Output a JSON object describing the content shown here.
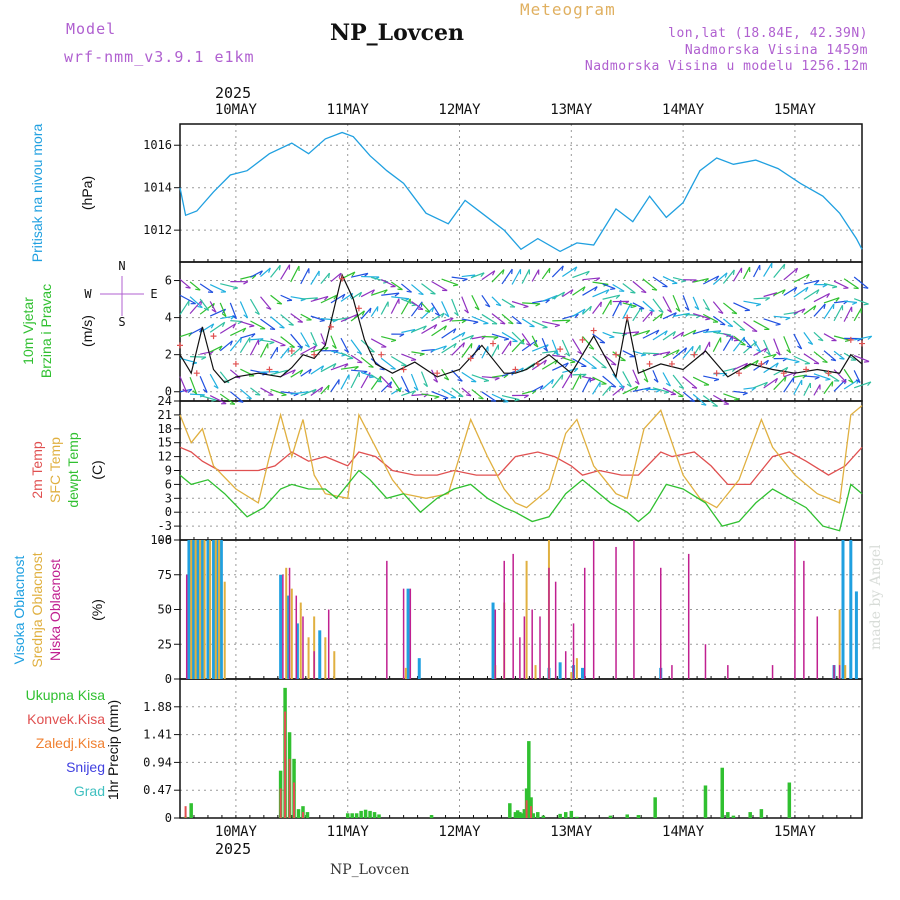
{
  "header": {
    "model_label": "Model",
    "model_value": "wrf-nmm_v3.9.1 e1km",
    "station_title": "NP_Lovcen",
    "meteogram_label": "Meteogram",
    "info_lines": [
      "lon,lat (18.84E, 42.39N)",
      "Nadmorska Visina 1459m",
      "Nadmorska Visina u modelu 1256.12m"
    ],
    "year": "2025",
    "footer_station": "NP_Lovcen",
    "watermark": "made by Angel"
  },
  "colors": {
    "pressure": "#20a0e0",
    "wind_label": "#30c030",
    "temp2m": "#e05050",
    "sfc": "#e0b040",
    "dewpt": "#30c030",
    "cloud_high": "#20a0e0",
    "cloud_mid": "#e0b040",
    "cloud_low": "#c02090",
    "precip_total": "#30c030",
    "precip_conv": "#e05050",
    "precip_strat": "#f08030",
    "precip_snow": "#4040e0",
    "precip_hail": "#40c0c0",
    "title_purple": "#b060d0"
  },
  "chart_data": [
    {
      "id": "pressure",
      "type": "line",
      "title": "",
      "ylabel": "Pritisak na nivou mora",
      "yunit": "(hPa)",
      "ylim": [
        1010.5,
        1017
      ],
      "yticks": [
        1012,
        1014,
        1016
      ],
      "x_start": 0,
      "x_end": 6.1,
      "grid": true,
      "x": [
        0.0,
        0.05,
        0.15,
        0.3,
        0.45,
        0.6,
        0.8,
        1.0,
        1.15,
        1.3,
        1.45,
        1.55,
        1.7,
        1.85,
        2.0,
        2.2,
        2.4,
        2.55,
        2.7,
        2.9,
        3.05,
        3.2,
        3.4,
        3.55,
        3.7,
        3.9,
        4.05,
        4.2,
        4.35,
        4.5,
        4.65,
        4.8,
        4.95,
        5.15,
        5.35,
        5.55,
        5.75,
        5.9,
        6.05,
        6.1
      ],
      "values": [
        1014.0,
        1012.7,
        1012.9,
        1013.8,
        1014.6,
        1014.8,
        1015.6,
        1016.1,
        1015.6,
        1016.3,
        1016.6,
        1016.4,
        1015.5,
        1014.8,
        1014.2,
        1012.8,
        1012.3,
        1013.4,
        1012.8,
        1012.0,
        1011.1,
        1011.6,
        1011.0,
        1011.4,
        1011.3,
        1013.0,
        1012.4,
        1013.6,
        1012.6,
        1013.3,
        1014.8,
        1015.4,
        1015.1,
        1015.3,
        1014.9,
        1014.2,
        1013.6,
        1012.8,
        1011.6,
        1011.1
      ]
    },
    {
      "id": "wind",
      "type": "line",
      "ylabel": "10m Vjetar Brzina i Pravac",
      "yunit": "(m/s)",
      "compass": [
        "N",
        "W",
        "E",
        "S"
      ],
      "ylim": [
        -0.5,
        7
      ],
      "yticks": [
        0,
        2,
        4,
        6
      ],
      "x_start": 0,
      "x_end": 6.1,
      "grid": true,
      "arrow_levels": [
        0,
        1,
        2,
        3,
        4,
        5,
        6
      ],
      "series": [
        {
          "role": "speed",
          "x": [
            0.0,
            0.1,
            0.2,
            0.3,
            0.4,
            0.5,
            0.7,
            0.9,
            1.0,
            1.1,
            1.2,
            1.3,
            1.45,
            1.55,
            1.65,
            1.75,
            1.9,
            2.1,
            2.3,
            2.5,
            2.7,
            2.9,
            3.0,
            3.1,
            3.3,
            3.5,
            3.7,
            3.9,
            4.0,
            4.1,
            4.3,
            4.5,
            4.7,
            4.9,
            5.1,
            5.3,
            5.5,
            5.7,
            5.9,
            6.0,
            6.1
          ],
          "values": [
            2.0,
            1.0,
            3.5,
            1.2,
            0.5,
            0.8,
            1.0,
            0.8,
            1.3,
            2.0,
            1.8,
            2.5,
            6.3,
            5.0,
            2.8,
            1.5,
            1.0,
            1.6,
            0.8,
            1.2,
            2.5,
            1.0,
            1.0,
            1.2,
            2.0,
            1.0,
            3.0,
            0.8,
            4.0,
            1.0,
            1.5,
            1.2,
            2.2,
            0.8,
            1.5,
            1.2,
            1.0,
            1.2,
            1.0,
            2.0,
            1.5
          ]
        },
        {
          "role": "gust",
          "x": [
            0.0,
            0.15,
            0.3,
            0.5,
            0.8,
            1.0,
            1.2,
            1.35,
            1.45,
            1.6,
            1.8,
            2.0,
            2.3,
            2.6,
            2.8,
            3.0,
            3.2,
            3.4,
            3.6,
            3.7,
            3.9,
            4.0,
            4.2,
            4.4,
            4.6,
            4.8,
            5.0,
            5.2,
            5.4,
            5.6,
            5.8,
            6.0,
            6.1
          ],
          "values": [
            2.5,
            1.0,
            3.0,
            1.5,
            1.2,
            2.2,
            2.0,
            3.5,
            6.1,
            4.5,
            2.0,
            1.2,
            1.0,
            1.8,
            2.6,
            1.2,
            1.5,
            2.3,
            2.8,
            3.3,
            2.0,
            4.0,
            1.5,
            1.5,
            2.0,
            1.0,
            1.0,
            1.5,
            1.0,
            1.2,
            1.0,
            2.8,
            2.6
          ]
        }
      ]
    },
    {
      "id": "temperature",
      "type": "line",
      "ylabel": [
        "2m Temp",
        "SFC Temp",
        "dewpt Temp"
      ],
      "yunit": "(C)",
      "ylim": [
        -6,
        24
      ],
      "yticks": [
        -6,
        -3,
        0,
        3,
        6,
        9,
        12,
        15,
        18,
        21,
        24
      ],
      "x_start": 0,
      "x_end": 6.1,
      "grid": true,
      "series": [
        {
          "name": "2m Temp",
          "x": [
            0.0,
            0.1,
            0.2,
            0.35,
            0.5,
            0.7,
            0.85,
            1.0,
            1.15,
            1.3,
            1.5,
            1.6,
            1.75,
            1.9,
            2.1,
            2.3,
            2.45,
            2.65,
            2.85,
            3.0,
            3.2,
            3.35,
            3.5,
            3.6,
            3.75,
            3.95,
            4.1,
            4.3,
            4.4,
            4.6,
            4.75,
            4.9,
            5.1,
            5.3,
            5.45,
            5.6,
            5.8,
            5.95,
            6.1
          ],
          "values": [
            14,
            13,
            11,
            9,
            9,
            9,
            10,
            13,
            11,
            12,
            10,
            13,
            12,
            9,
            8,
            8,
            9,
            8,
            8,
            12,
            13,
            12,
            10,
            8,
            9,
            8,
            8,
            13,
            12,
            13,
            10,
            6,
            6,
            12,
            13,
            11,
            8,
            10,
            14
          ]
        },
        {
          "name": "SFC Temp",
          "x": [
            0.0,
            0.1,
            0.2,
            0.3,
            0.5,
            0.7,
            0.8,
            0.9,
            1.0,
            1.1,
            1.2,
            1.3,
            1.5,
            1.6,
            1.75,
            1.9,
            2.0,
            2.2,
            2.4,
            2.5,
            2.6,
            2.75,
            2.9,
            3.0,
            3.1,
            3.3,
            3.45,
            3.55,
            3.7,
            3.9,
            4.0,
            4.15,
            4.3,
            4.5,
            4.65,
            4.8,
            5.0,
            5.2,
            5.3,
            5.5,
            5.7,
            5.9,
            6.0,
            6.1
          ],
          "values": [
            21,
            15,
            18,
            10,
            5,
            2,
            12,
            21,
            12,
            20,
            8,
            4,
            3,
            21,
            14,
            7,
            4,
            3,
            4,
            12,
            20,
            12,
            5,
            2,
            1,
            5,
            17,
            20,
            10,
            4,
            3,
            18,
            22,
            8,
            3,
            1,
            7,
            20,
            14,
            8,
            4,
            2,
            21,
            23
          ]
        },
        {
          "name": "dewpt Temp",
          "x": [
            0.0,
            0.1,
            0.25,
            0.4,
            0.6,
            0.75,
            0.9,
            1.0,
            1.15,
            1.3,
            1.4,
            1.6,
            1.7,
            1.85,
            2.0,
            2.15,
            2.3,
            2.45,
            2.6,
            2.75,
            2.9,
            3.0,
            3.15,
            3.3,
            3.45,
            3.6,
            3.7,
            3.85,
            4.0,
            4.1,
            4.2,
            4.35,
            4.5,
            4.7,
            4.85,
            5.0,
            5.15,
            5.3,
            5.45,
            5.6,
            5.75,
            5.9,
            6.0,
            6.1
          ],
          "values": [
            8,
            6,
            7,
            4,
            -1,
            1,
            5,
            6,
            5,
            5,
            3,
            9,
            7,
            3,
            4,
            0,
            3,
            5,
            6,
            3,
            1,
            0,
            -2,
            -1,
            4,
            7,
            5,
            2,
            0,
            -2,
            0,
            6,
            5,
            2,
            -3,
            -2,
            2,
            5,
            3,
            1,
            -3,
            -4,
            6,
            4
          ]
        }
      ]
    },
    {
      "id": "clouds",
      "type": "bar",
      "ylabel": [
        "Visoka Oblacnost",
        "Srednja Oblacnost",
        "Niska Oblacnost"
      ],
      "yunit": "(%)",
      "ylim": [
        0,
        100
      ],
      "yticks": [
        0,
        25,
        50,
        75,
        100
      ],
      "x_start": 0,
      "x_end": 6.1,
      "grid": true,
      "series": [
        {
          "name": "Visoka Oblacnost",
          "x": [
            0.08,
            0.12,
            0.16,
            0.2,
            0.25,
            0.3,
            0.33,
            0.37,
            0.9,
            0.97,
            1.05,
            1.25,
            2.04,
            2.14,
            2.8,
            3.3,
            3.4,
            3.52,
            3.6,
            4.3,
            5.85,
            5.93,
            6.0,
            6.05
          ],
          "values": [
            100,
            100,
            100,
            100,
            100,
            100,
            100,
            100,
            75,
            60,
            40,
            35,
            65,
            15,
            55,
            8,
            12,
            10,
            8,
            8,
            10,
            100,
            100,
            63
          ]
        },
        {
          "name": "Srednja Oblacnost",
          "x": [
            0.1,
            0.14,
            0.18,
            0.22,
            0.27,
            0.32,
            0.35,
            0.4,
            0.95,
            1.0,
            1.08,
            1.15,
            1.2,
            1.3,
            1.38,
            2.02,
            2.82,
            2.9,
            3.1,
            3.18,
            3.3,
            3.5,
            3.55,
            5.9,
            5.95
          ],
          "values": [
            100,
            100,
            100,
            100,
            100,
            100,
            100,
            70,
            80,
            65,
            55,
            30,
            45,
            30,
            20,
            8,
            10,
            55,
            85,
            10,
            100,
            5,
            15,
            50,
            10
          ]
        },
        {
          "name": "Niska Oblacnost",
          "x": [
            0.06,
            0.92,
            0.98,
            1.04,
            1.1,
            1.2,
            1.33,
            1.85,
            2.0,
            2.06,
            2.82,
            2.9,
            2.98,
            3.04,
            3.08,
            3.15,
            3.22,
            3.3,
            3.36,
            3.45,
            3.52,
            3.62,
            3.7,
            3.9,
            4.06,
            4.3,
            4.4,
            4.55,
            4.7,
            4.9,
            5.3,
            5.5,
            5.58,
            5.7,
            5.85,
            5.9
          ],
          "values": [
            75,
            75,
            80,
            60,
            45,
            20,
            50,
            85,
            65,
            65,
            50,
            85,
            90,
            30,
            45,
            50,
            45,
            80,
            70,
            20,
            40,
            80,
            100,
            95,
            100,
            80,
            10,
            90,
            25,
            10,
            10,
            100,
            85,
            45,
            10,
            10
          ]
        }
      ]
    },
    {
      "id": "precip",
      "type": "bar",
      "ylabel": "1hr Precip",
      "yunit": "(mm)",
      "legend": [
        "Ukupna Kisa",
        "Konvek.Kisa",
        "Zaledj.Kisa",
        "Snijeg",
        "Grad"
      ],
      "ylim": [
        0,
        2.35
      ],
      "yticks": [
        0,
        0.47,
        0.94,
        1.41,
        1.88
      ],
      "x_start": 0,
      "x_end": 6.1,
      "grid": true,
      "series": [
        {
          "name": "Ukupna Kisa",
          "x": [
            0.05,
            0.1,
            0.9,
            0.94,
            0.98,
            1.02,
            1.06,
            1.1,
            1.14,
            1.5,
            1.54,
            1.58,
            1.62,
            1.66,
            1.7,
            1.74,
            1.78,
            2.25,
            2.95,
            3.0,
            3.02,
            3.04,
            3.06,
            3.08,
            3.1,
            3.12,
            3.14,
            3.16,
            3.2,
            3.25,
            3.4,
            3.45,
            3.5,
            3.55,
            3.85,
            4.0,
            4.1,
            4.25,
            4.7,
            4.85,
            4.9,
            4.95,
            5.1,
            5.2,
            5.45
          ],
          "values": [
            0.02,
            0.25,
            0.8,
            2.2,
            1.45,
            1.0,
            0.15,
            0.2,
            0.1,
            0.08,
            0.08,
            0.08,
            0.12,
            0.14,
            0.12,
            0.1,
            0.06,
            0.05,
            0.25,
            0.1,
            0.13,
            0.1,
            0.08,
            0.15,
            0.5,
            1.3,
            0.35,
            0.08,
            0.1,
            0.04,
            0.07,
            0.1,
            0.12,
            0.02,
            0.04,
            0.06,
            0.05,
            0.35,
            0.55,
            0.85,
            0.1,
            0.04,
            0.1,
            0.15,
            0.6
          ]
        },
        {
          "name": "Konvek.Kisa",
          "x": [
            0.05,
            0.9,
            0.94,
            0.98,
            1.02,
            1.1,
            3.1,
            3.14
          ],
          "values": [
            0.2,
            0.5,
            1.8,
            1.0,
            0.6,
            0.1,
            0.3,
            0.2
          ]
        },
        {
          "name": "Zaledj.Kisa",
          "x": [],
          "values": []
        },
        {
          "name": "Snijeg",
          "x": [],
          "values": []
        },
        {
          "name": "Grad",
          "x": [],
          "values": []
        }
      ]
    }
  ],
  "x_axis": {
    "labels": [
      "10MAY",
      "11MAY",
      "12MAY",
      "13MAY",
      "14MAY",
      "15MAY"
    ],
    "positions": [
      0.5,
      1.5,
      2.5,
      3.5,
      4.5,
      5.5
    ]
  }
}
